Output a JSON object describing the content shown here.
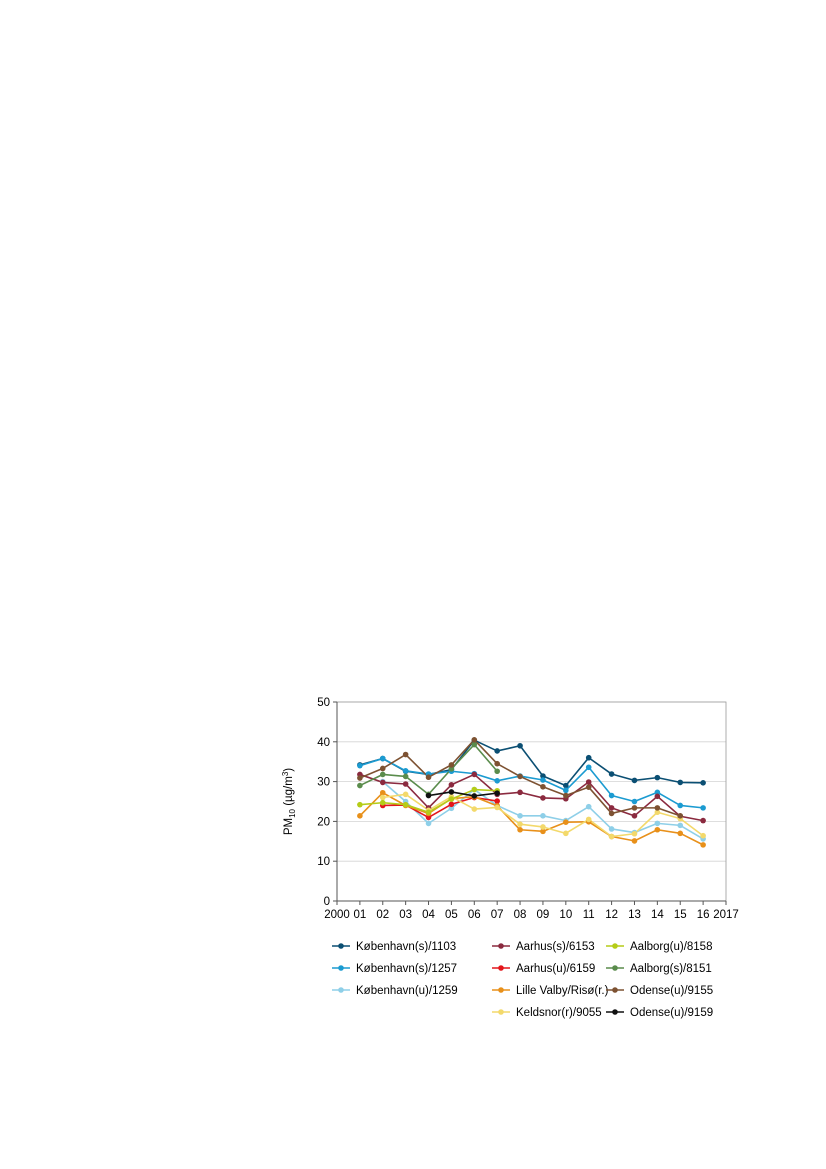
{
  "chart_data": {
    "type": "line",
    "ylabel": "PM",
    "ylabel_sub": "10",
    "ylabel_unit": " (µg/m",
    "ylabel_sup": "3",
    "ylabel_close": ")",
    "ylim": [
      0,
      50
    ],
    "yticks": [
      0,
      10,
      20,
      30,
      40,
      50
    ],
    "xlim": [
      2000,
      2017
    ],
    "xticks": [
      {
        "x": 2000,
        "label": "2000"
      },
      {
        "x": 2001,
        "label": "01"
      },
      {
        "x": 2002,
        "label": "02"
      },
      {
        "x": 2003,
        "label": "03"
      },
      {
        "x": 2004,
        "label": "04"
      },
      {
        "x": 2005,
        "label": "05"
      },
      {
        "x": 2006,
        "label": "06"
      },
      {
        "x": 2007,
        "label": "07"
      },
      {
        "x": 2008,
        "label": "08"
      },
      {
        "x": 2009,
        "label": "09"
      },
      {
        "x": 2010,
        "label": "10"
      },
      {
        "x": 2011,
        "label": "11"
      },
      {
        "x": 2012,
        "label": "12"
      },
      {
        "x": 2013,
        "label": "13"
      },
      {
        "x": 2014,
        "label": "14"
      },
      {
        "x": 2015,
        "label": "15"
      },
      {
        "x": 2016,
        "label": "16"
      },
      {
        "x": 2017,
        "label": "2017"
      }
    ],
    "legend_position": "bottom",
    "series": [
      {
        "name": "København(s)/1103",
        "color": "#0b4f73",
        "x": [
          2001,
          2002,
          2003,
          2004,
          2005,
          2006,
          2007,
          2008,
          2009,
          2010,
          2011,
          2012,
          2013,
          2014,
          2015,
          2016
        ],
        "y": [
          34.2,
          35.8,
          32.6,
          31.8,
          33.0,
          40.4,
          37.7,
          39.0,
          31.4,
          29.0,
          36.0,
          31.9,
          30.3,
          31.0,
          29.8,
          29.7
        ]
      },
      {
        "name": "København(s)/1257",
        "color": "#1b9bd1",
        "x": [
          2001,
          2002,
          2003,
          2004,
          2005,
          2006,
          2007,
          2008,
          2009,
          2010,
          2011,
          2012,
          2013,
          2014,
          2015,
          2016
        ],
        "y": [
          34.0,
          35.8,
          32.7,
          31.9,
          32.6,
          32.0,
          30.2,
          31.4,
          30.4,
          27.8,
          33.6,
          26.5,
          25.0,
          27.3,
          24.0,
          23.4
        ]
      },
      {
        "name": "København(u)/1259",
        "color": "#8ecfe8",
        "x": [
          2002,
          2003,
          2004,
          2005,
          2006,
          2007,
          2008,
          2009,
          2010,
          2011,
          2012,
          2013,
          2014,
          2015,
          2016
        ],
        "y": [
          30.0,
          25.0,
          19.5,
          23.3,
          28.0,
          24.0,
          21.4,
          21.4,
          20.2,
          23.7,
          18.1,
          17.2,
          19.5,
          19.0,
          15.6
        ]
      },
      {
        "name": "Aarhus(s)/6153",
        "color": "#8b2a3f",
        "x": [
          2001,
          2002,
          2003,
          2004,
          2005,
          2006,
          2007,
          2008,
          2009,
          2010,
          2011,
          2012,
          2013,
          2014,
          2015,
          2016
        ],
        "y": [
          31.8,
          29.8,
          29.4,
          23.4,
          29.2,
          31.8,
          26.8,
          27.3,
          25.9,
          25.7,
          29.9,
          23.4,
          21.4,
          26.3,
          21.3,
          20.2
        ]
      },
      {
        "name": "Aarhus(u)/6159",
        "color": "#e3161b",
        "x": [
          2002,
          2003,
          2004,
          2005,
          2006,
          2007
        ],
        "y": [
          24.0,
          24.1,
          21.0,
          24.3,
          26.0,
          25.1
        ]
      },
      {
        "name": "Lille Valby/Risø(r.)",
        "color": "#e8901a",
        "x": [
          2001,
          2002,
          2003,
          2004,
          2005,
          2006,
          2007,
          2008,
          2009,
          2010,
          2011,
          2012,
          2013,
          2014,
          2015,
          2016
        ],
        "y": [
          21.4,
          27.2,
          24.0,
          22.0,
          25.7,
          26.2,
          23.9,
          17.9,
          17.5,
          19.8,
          19.9,
          16.2,
          15.1,
          17.9,
          17.0,
          14.1
        ]
      },
      {
        "name": "Keldsnor(r)/9055",
        "color": "#f3d96b",
        "x": [
          2002,
          2003,
          2004,
          2005,
          2006,
          2007,
          2008,
          2009,
          2010,
          2011,
          2012,
          2013,
          2014,
          2015,
          2016
        ],
        "y": [
          26.0,
          26.8,
          22.8,
          26.2,
          23.1,
          23.5,
          19.3,
          18.6,
          17.0,
          20.5,
          16.2,
          16.9,
          22.3,
          20.7,
          16.4
        ]
      },
      {
        "name": "Aalborg(u)/8158",
        "color": "#b5cc18",
        "x": [
          2001,
          2002,
          2003,
          2004,
          2005,
          2006,
          2007
        ],
        "y": [
          24.2,
          24.7,
          24.2,
          22.3,
          25.6,
          28.0,
          27.7
        ]
      },
      {
        "name": "Aalborg(s)/8151",
        "color": "#5a8c4c",
        "x": [
          2001,
          2002,
          2003,
          2004,
          2005,
          2006,
          2007
        ],
        "y": [
          29.0,
          31.8,
          31.3,
          26.8,
          33.2,
          39.3,
          32.6
        ]
      },
      {
        "name": "Odense(u)/9155",
        "color": "#7d5232",
        "x": [
          2001,
          2002,
          2003,
          2004,
          2005,
          2006,
          2007,
          2008,
          2009,
          2010,
          2011,
          2012,
          2013,
          2014,
          2015,
          2016
        ],
        "y": [
          30.9,
          33.3,
          36.8,
          31.1,
          34.2,
          40.5,
          34.5,
          31.3,
          28.7,
          26.5,
          28.6,
          22.0,
          23.4,
          23.4,
          21.4,
          null
        ]
      },
      {
        "name": "Odense(u)/9159",
        "color": "#111111",
        "x": [
          2004,
          2005,
          2006,
          2007
        ],
        "y": [
          26.5,
          27.4,
          26.4,
          27.1
        ]
      }
    ],
    "legend_order": [
      0,
      3,
      7,
      1,
      4,
      8,
      2,
      5,
      9,
      6,
      10
    ]
  }
}
